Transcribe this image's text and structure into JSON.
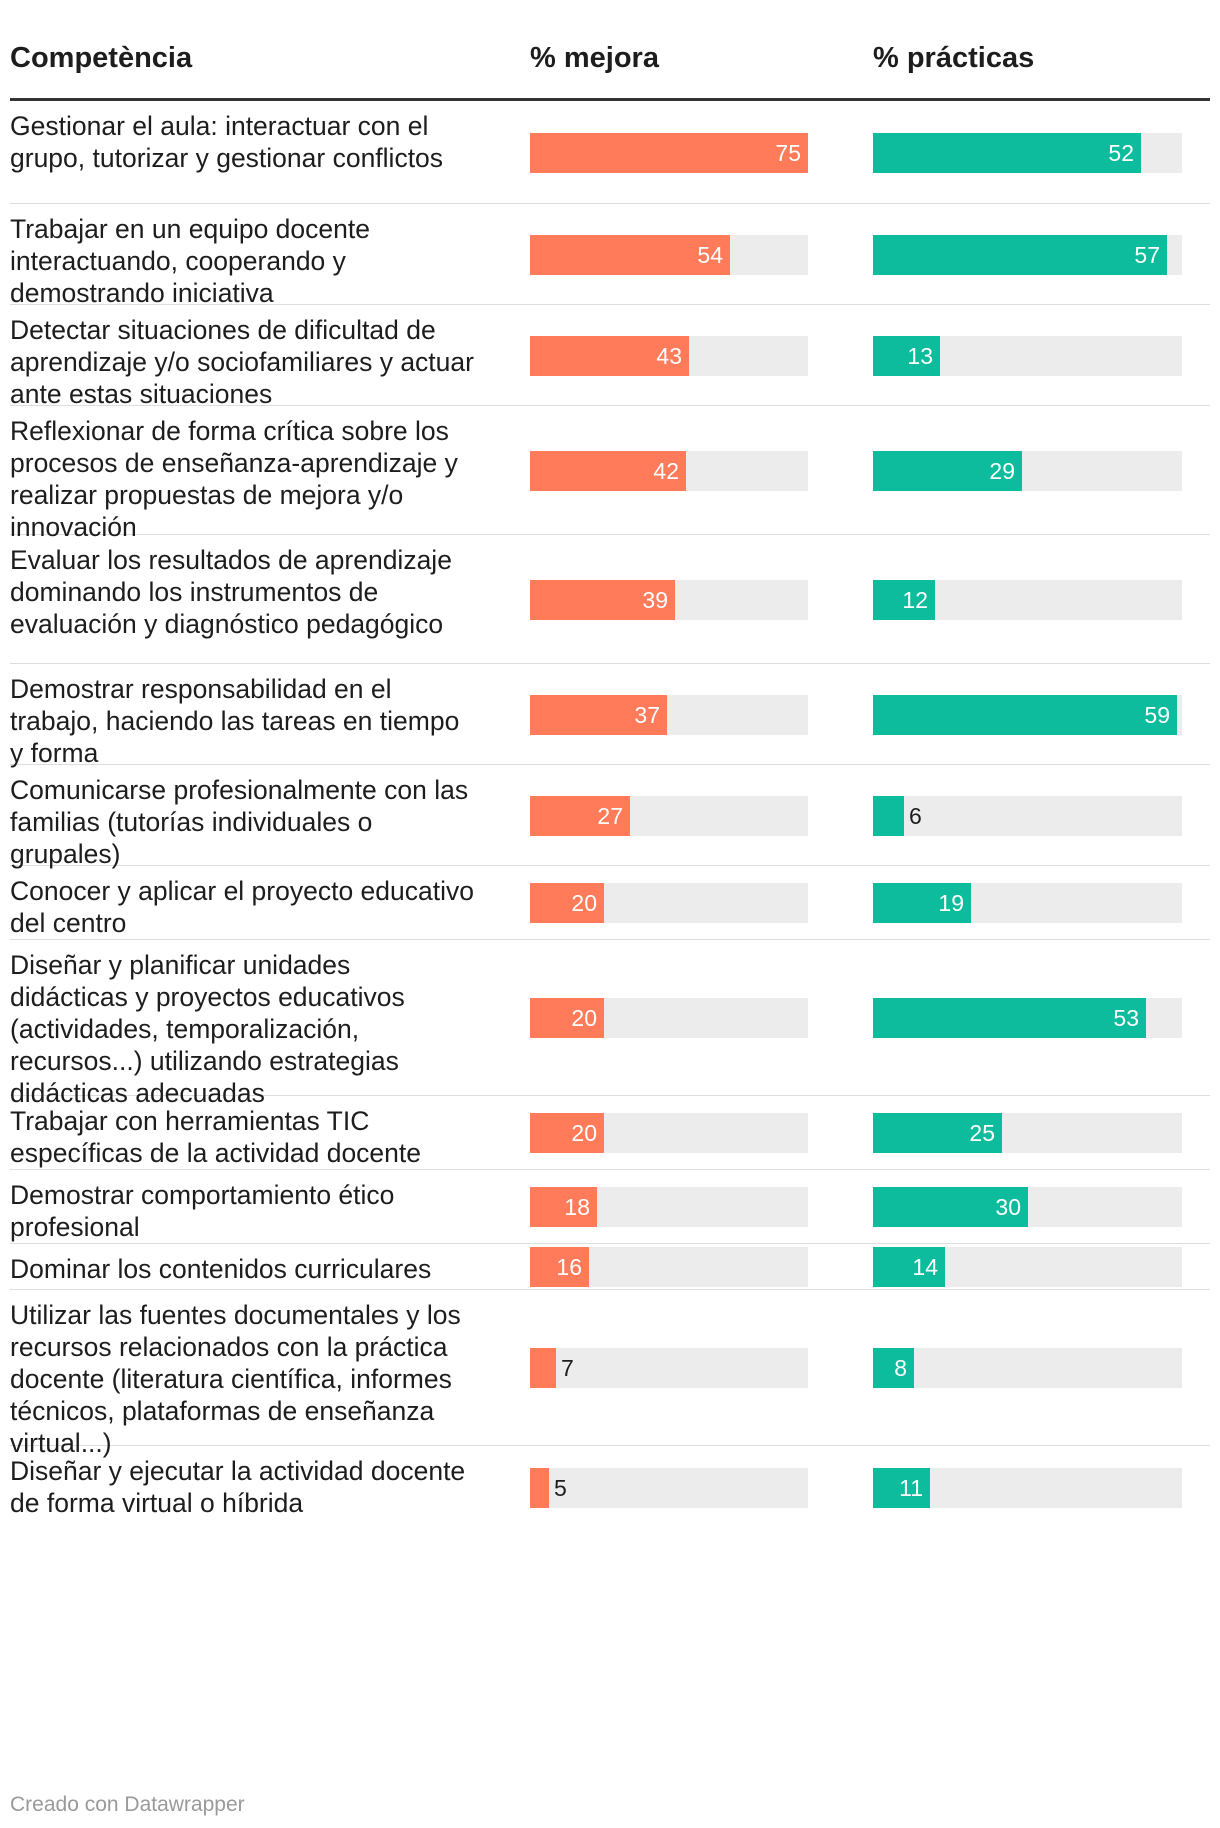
{
  "chart_data": {
    "type": "table",
    "columns": [
      "Competència",
      "% mejora",
      "% prácticas"
    ],
    "series_colors": {
      "mejora": "#ff7b59",
      "practicas": "#0dbc9c"
    },
    "max_value": 75,
    "rows": [
      {
        "label": "Gestionar el aula: interactuar con el grupo, tutorizar y gestionar conflictos",
        "mejora": 75,
        "practicas": 52
      },
      {
        "label": "Trabajar en un equipo docente interactuando, cooperando y demostrando iniciativa",
        "mejora": 54,
        "practicas": 57
      },
      {
        "label": "Detectar situaciones de dificultad de aprendizaje y/o sociofamiliares y actuar ante estas situaciones",
        "mejora": 43,
        "practicas": 13
      },
      {
        "label": "Reflexionar de forma crítica sobre los procesos de enseñanza-aprendizaje y realizar propuestas de mejora y/o innovación",
        "mejora": 42,
        "practicas": 29
      },
      {
        "label": "Evaluar los resultados de aprendizaje dominando los instrumentos de evaluación y diagnóstico pedagógico",
        "mejora": 39,
        "practicas": 12
      },
      {
        "label": "Demostrar responsabilidad en el trabajo, haciendo las tareas en tiempo y forma",
        "mejora": 37,
        "practicas": 59
      },
      {
        "label": "Comunicarse profesionalmente con las familias (tutorías individuales o grupales)",
        "mejora": 27,
        "practicas": 6
      },
      {
        "label": "Conocer y aplicar el proyecto educativo del centro",
        "mejora": 20,
        "practicas": 19
      },
      {
        "label": "Diseñar y planificar unidades didácticas y proyectos educativos (actividades, temporalización, recursos...) utilizando estrategias didácticas adecuadas",
        "mejora": 20,
        "practicas": 53
      },
      {
        "label": "Trabajar con herramientas TIC específicas de la actividad docente",
        "mejora": 20,
        "practicas": 25
      },
      {
        "label": "Demostrar comportamiento ético profesional",
        "mejora": 18,
        "practicas": 30
      },
      {
        "label": "Dominar los contenidos curriculares",
        "mejora": 16,
        "practicas": 14
      },
      {
        "label": "Utilizar las fuentes documentales y los recursos relacionados con la práctica docente (literatura científica, informes técnicos, plataformas de enseñanza virtual...)",
        "mejora": 7,
        "practicas": 8
      },
      {
        "label": "Diseñar y ejecutar la actividad docente de forma virtual o híbrida",
        "mejora": 5,
        "practicas": 11
      }
    ]
  },
  "footer": "Creado con Datawrapper"
}
